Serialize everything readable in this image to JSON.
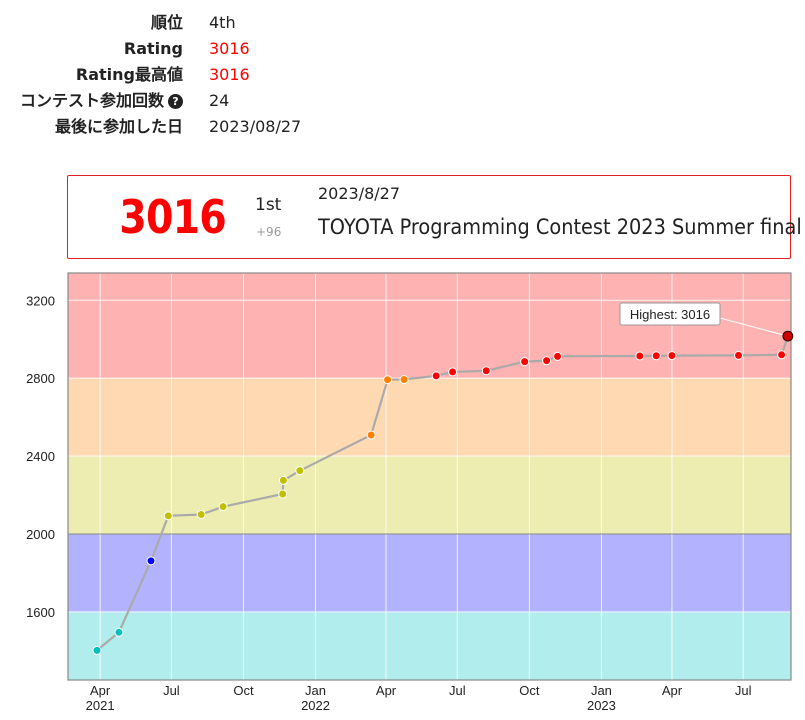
{
  "profile": {
    "rank_label": "順位",
    "rank_value": "4th",
    "rating_label": "Rating",
    "rating_value": "3016",
    "highest_label": "Rating最高値",
    "highest_value": "3016",
    "contests_label": "コンテスト参加回数",
    "contests_value": "24",
    "last_label": "最後に参加した日",
    "last_value": "2023/08/27",
    "help_icon": "question-circle-icon"
  },
  "status": {
    "rating": "3016",
    "place": "1st",
    "diff": "+96",
    "date": "2023/8/27",
    "contest": "TOYOTA Programming Contest 2023 Summer final"
  },
  "chart_data": {
    "type": "line",
    "title": "",
    "xlabel": "",
    "ylabel": "",
    "ylim": [
      1250,
      3340
    ],
    "xlim": [
      "2021-02-19",
      "2023-08-31"
    ],
    "yticks": [
      1600,
      2000,
      2400,
      2800,
      3200
    ],
    "xticks": [
      {
        "date": "2021-04-01",
        "label": "Apr",
        "year": "2021"
      },
      {
        "date": "2021-07-01",
        "label": "Jul",
        "year": ""
      },
      {
        "date": "2021-10-01",
        "label": "Oct",
        "year": ""
      },
      {
        "date": "2022-01-01",
        "label": "Jan",
        "year": "2022"
      },
      {
        "date": "2022-04-01",
        "label": "Apr",
        "year": ""
      },
      {
        "date": "2022-07-01",
        "label": "Jul",
        "year": ""
      },
      {
        "date": "2022-10-01",
        "label": "Oct",
        "year": ""
      },
      {
        "date": "2023-01-01",
        "label": "Jan",
        "year": "2023"
      },
      {
        "date": "2023-04-01",
        "label": "Apr",
        "year": ""
      },
      {
        "date": "2023-07-01",
        "label": "Jul",
        "year": ""
      }
    ],
    "bands": [
      {
        "from": 1200,
        "to": 1600,
        "color": "#B2EDED"
      },
      {
        "from": 1600,
        "to": 2000,
        "color": "#B2B2FF"
      },
      {
        "from": 2000,
        "to": 2400,
        "color": "#EDEDB2"
      },
      {
        "from": 2400,
        "to": 2800,
        "color": "#FFD9B2"
      },
      {
        "from": 2800,
        "to": 3400,
        "color": "#FFB2B2"
      }
    ],
    "grid": true,
    "highest_annotation": "Highest: 3016",
    "series": [
      {
        "values": [
          {
            "x": "2021-03-28",
            "y": 1402
          },
          {
            "x": "2021-04-25",
            "y": 1495
          },
          {
            "x": "2021-06-05",
            "y": 1862
          },
          {
            "x": "2021-06-27",
            "y": 2093
          },
          {
            "x": "2021-08-08",
            "y": 2100
          },
          {
            "x": "2021-09-05",
            "y": 2140
          },
          {
            "x": "2021-11-20",
            "y": 2205
          },
          {
            "x": "2021-11-21",
            "y": 2275
          },
          {
            "x": "2021-12-12",
            "y": 2325
          },
          {
            "x": "2022-03-13",
            "y": 2508
          },
          {
            "x": "2022-04-03",
            "y": 2792
          },
          {
            "x": "2022-04-24",
            "y": 2793
          },
          {
            "x": "2022-06-04",
            "y": 2812
          },
          {
            "x": "2022-06-25",
            "y": 2832
          },
          {
            "x": "2022-08-07",
            "y": 2838
          },
          {
            "x": "2022-09-25",
            "y": 2885
          },
          {
            "x": "2022-10-23",
            "y": 2890
          },
          {
            "x": "2022-11-06",
            "y": 2912
          },
          {
            "x": "2023-02-19",
            "y": 2914
          },
          {
            "x": "2023-03-12",
            "y": 2915
          },
          {
            "x": "2023-04-01",
            "y": 2916
          },
          {
            "x": "2023-06-25",
            "y": 2917
          },
          {
            "x": "2023-08-19",
            "y": 2920
          },
          {
            "x": "2023-08-27",
            "y": 3016
          }
        ]
      }
    ]
  }
}
